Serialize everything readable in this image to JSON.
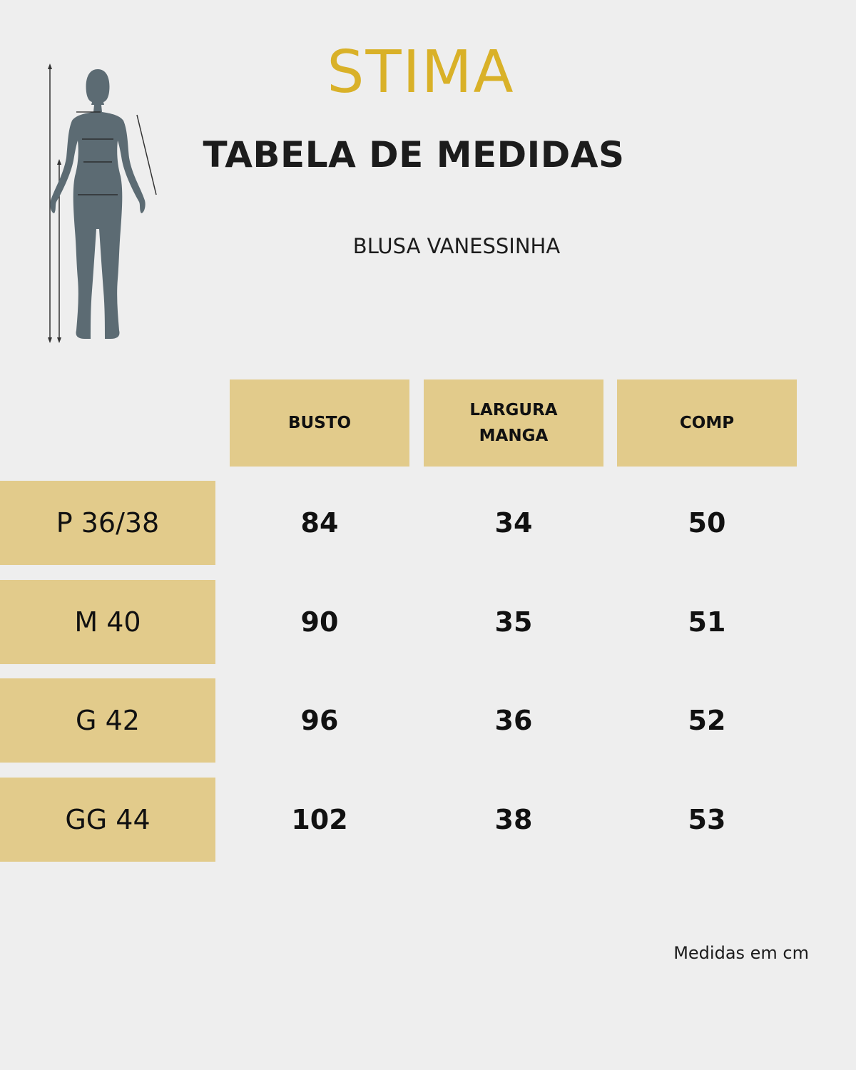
{
  "brand": {
    "logo_text": "STIMA"
  },
  "title": "TABELA DE MEDIDAS",
  "product": "BLUSA VANESSINHA",
  "table": {
    "columns": [
      "BUSTO",
      "LARGURA\nMANGA",
      "COMP"
    ],
    "rows": [
      {
        "size": "P 36/38",
        "values": [
          "84",
          "34",
          "50"
        ]
      },
      {
        "size": "M 40",
        "values": [
          "90",
          "35",
          "51"
        ]
      },
      {
        "size": "G 42",
        "values": [
          "96",
          "36",
          "52"
        ]
      },
      {
        "size": "GG 44",
        "values": [
          "102",
          "38",
          "53"
        ]
      }
    ]
  },
  "footnote": "Medidas em cm",
  "colors": {
    "accent": "#d9b128",
    "cell_bg": "#e2cb8b",
    "background": "#eeeeee",
    "figure": "#5c6b73"
  }
}
